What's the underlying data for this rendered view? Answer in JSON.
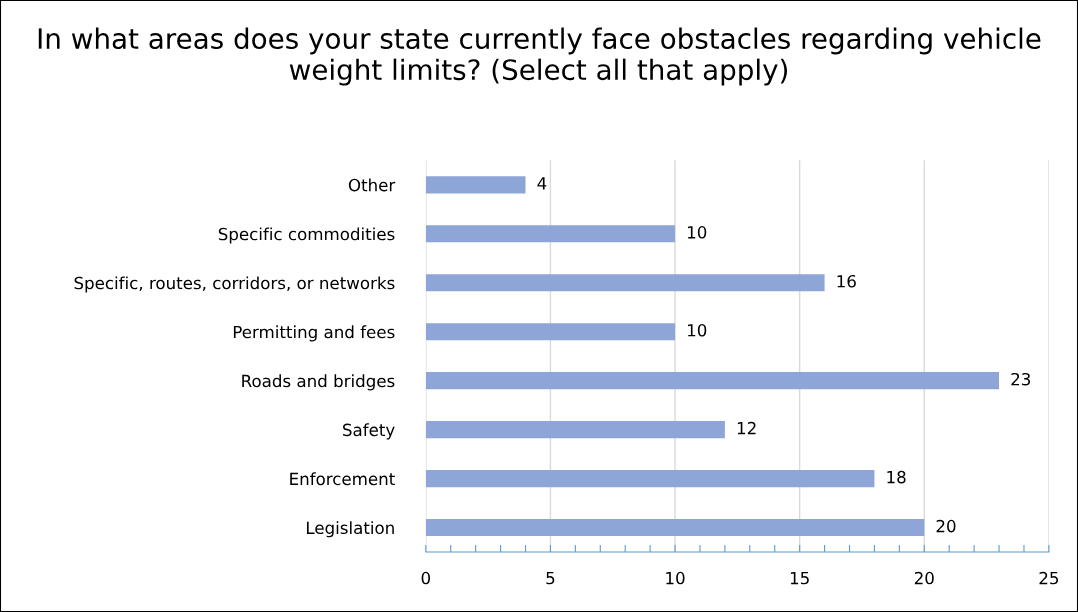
{
  "chart_data": {
    "type": "bar",
    "orientation": "horizontal",
    "title": "In what areas does your state currently face obstacles regarding vehicle weight limits? (Select all that apply)",
    "categories": [
      "Other",
      "Specific commodities",
      "Specific, routes, corridors, or networks",
      "Permitting and fees",
      "Roads and bridges",
      "Safety",
      "Enforcement",
      "Legislation"
    ],
    "values": [
      4,
      10,
      16,
      10,
      23,
      12,
      18,
      20
    ],
    "color": "#8ea5d8",
    "xlim": [
      0,
      25
    ],
    "xticks": [
      0,
      {
        "value": 1,
        "label": null
      },
      {
        "value": 2,
        "label": null
      },
      {
        "value": 3,
        "label": null
      },
      {
        "value": 4,
        "label": null
      },
      5,
      {
        "value": 6,
        "label": null
      },
      {
        "value": 7,
        "label": null
      },
      {
        "value": 8,
        "label": null
      },
      {
        "value": 9,
        "label": null
      },
      10,
      {
        "value": 11,
        "label": null
      },
      {
        "value": 12,
        "label": null
      },
      {
        "value": 13,
        "label": null
      },
      {
        "value": 14,
        "label": null
      },
      15,
      {
        "value": 16,
        "label": null
      },
      {
        "value": 17,
        "label": null
      },
      {
        "value": 18,
        "label": null
      },
      {
        "value": 19,
        "label": null
      },
      20,
      {
        "value": 21,
        "label": null
      },
      {
        "value": 22,
        "label": null
      },
      {
        "value": 23,
        "label": null
      },
      {
        "value": 24,
        "label": null
      },
      25
    ],
    "grid": "x",
    "data_labels": true
  }
}
